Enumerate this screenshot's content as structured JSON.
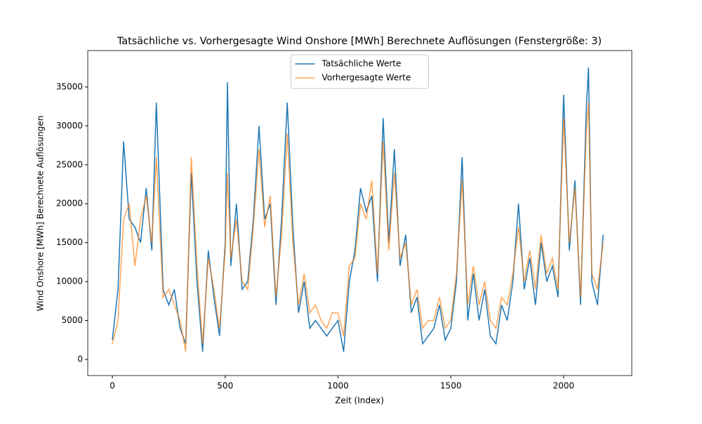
{
  "chart_data": {
    "type": "line",
    "title": "Tatsächliche vs. Vorhergesagte Wind Onshore [MWh] Berechnete Auflösungen (Fenstergröße: 3)",
    "x_label": "Zeit (Index)",
    "y_label": "Wind Onshore [MWh] Berechnete Auflösungen",
    "x": [
      0,
      25,
      50,
      75,
      100,
      125,
      150,
      175,
      195,
      225,
      250,
      275,
      300,
      325,
      350,
      375,
      400,
      425,
      450,
      475,
      500,
      510,
      525,
      550,
      575,
      600,
      625,
      650,
      675,
      700,
      725,
      750,
      775,
      800,
      825,
      850,
      875,
      900,
      925,
      950,
      975,
      1000,
      1025,
      1050,
      1075,
      1100,
      1125,
      1150,
      1175,
      1200,
      1225,
      1250,
      1275,
      1300,
      1325,
      1350,
      1375,
      1400,
      1425,
      1450,
      1475,
      1500,
      1525,
      1550,
      1575,
      1600,
      1625,
      1650,
      1675,
      1700,
      1725,
      1750,
      1775,
      1800,
      1825,
      1850,
      1875,
      1900,
      1925,
      1950,
      1975,
      2000,
      2025,
      2050,
      2075,
      2100,
      2110,
      2125,
      2150,
      2175
    ],
    "series": [
      {
        "name": "Tatsächliche Werte",
        "color": "#1f77b4",
        "opacity": 1,
        "values": [
          2500,
          9000,
          28000,
          18000,
          17000,
          15000,
          22000,
          14000,
          33000,
          9000,
          7000,
          9000,
          4000,
          2000,
          24000,
          10000,
          1000,
          14000,
          8000,
          3000,
          15000,
          35600,
          12000,
          20000,
          9000,
          10000,
          18000,
          30000,
          18000,
          20000,
          7000,
          18000,
          33000,
          17000,
          6000,
          10000,
          4000,
          5000,
          4000,
          3000,
          4000,
          5000,
          1000,
          10000,
          14000,
          22000,
          19000,
          21000,
          10000,
          31000,
          15000,
          27000,
          12000,
          16000,
          6000,
          8000,
          2000,
          3000,
          4000,
          7000,
          2500,
          4000,
          10000,
          26000,
          5000,
          11000,
          5000,
          9000,
          3000,
          2000,
          7000,
          5000,
          10000,
          20000,
          9000,
          13000,
          7000,
          15000,
          10000,
          12000,
          8000,
          34000,
          14000,
          23000,
          7000,
          32000,
          37500,
          10000,
          7000,
          16000
        ]
      },
      {
        "name": "Vorhergesagte Werte",
        "color": "#ff7f0e",
        "opacity": 0.7,
        "values": [
          2000,
          5000,
          18000,
          20000,
          12000,
          18000,
          21000,
          15000,
          26000,
          8000,
          9000,
          7000,
          5000,
          1000,
          26000,
          12000,
          2000,
          13000,
          9000,
          4000,
          14000,
          24000,
          13000,
          18000,
          10000,
          9000,
          17000,
          27000,
          17000,
          21000,
          8000,
          16000,
          29000,
          15000,
          7000,
          11000,
          6000,
          7000,
          5000,
          4000,
          6000,
          6000,
          3000,
          12000,
          13000,
          20000,
          18000,
          23000,
          11000,
          28000,
          14000,
          24000,
          13000,
          15000,
          7000,
          9000,
          4000,
          5000,
          5000,
          8000,
          4000,
          5000,
          11000,
          23000,
          7000,
          12000,
          7000,
          10000,
          5000,
          4000,
          8000,
          7000,
          11000,
          17000,
          10000,
          14000,
          9000,
          16000,
          11000,
          13000,
          9000,
          31000,
          15000,
          22000,
          8000,
          29000,
          33000,
          11000,
          9000,
          15000
        ]
      }
    ],
    "xlim": [
      -109,
      2302
    ],
    "ylim": [
      -2075,
      39680
    ],
    "xticks": [
      0,
      500,
      1000,
      1500,
      2000
    ],
    "yticks": [
      0,
      5000,
      10000,
      15000,
      20000,
      25000,
      30000,
      35000
    ],
    "legend": "upper center"
  }
}
